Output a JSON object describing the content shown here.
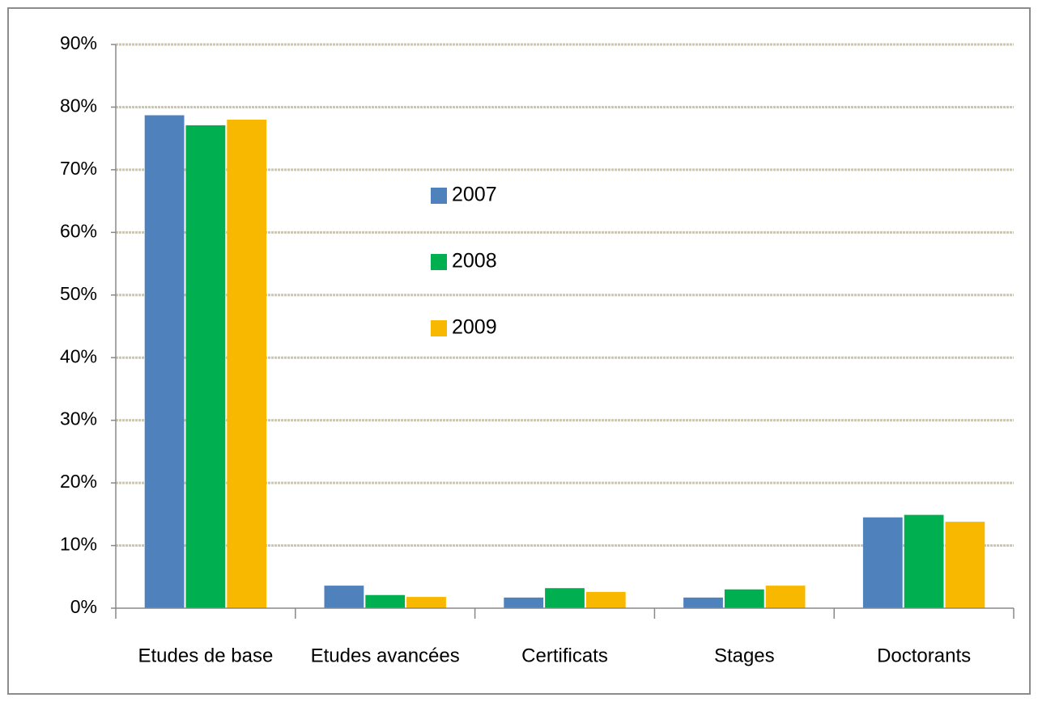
{
  "chart_data": {
    "type": "bar",
    "categories": [
      "Etudes de base",
      "Etudes avancées",
      "Certificats",
      "Stages",
      "Doctorants"
    ],
    "series": [
      {
        "name": "2007",
        "color": "#4f81bd",
        "values": [
          78.7,
          3.6,
          1.7,
          1.7,
          14.5
        ]
      },
      {
        "name": "2008",
        "color": "#00b050",
        "values": [
          77.1,
          2.1,
          3.2,
          3.0,
          14.9
        ]
      },
      {
        "name": "2009",
        "color": "#f9b800",
        "values": [
          78.0,
          1.8,
          2.6,
          3.6,
          13.8
        ]
      }
    ],
    "ylim": [
      0,
      90
    ],
    "yticks": [
      {
        "value": 0,
        "label": "0%"
      },
      {
        "value": 10,
        "label": "10%"
      },
      {
        "value": 20,
        "label": "20%"
      },
      {
        "value": 30,
        "label": "30%"
      },
      {
        "value": 40,
        "label": "40%"
      },
      {
        "value": 50,
        "label": "50%"
      },
      {
        "value": 60,
        "label": "60%"
      },
      {
        "value": 70,
        "label": "70%"
      },
      {
        "value": 80,
        "label": "80%"
      },
      {
        "value": 90,
        "label": "90%"
      }
    ],
    "grid": true
  }
}
